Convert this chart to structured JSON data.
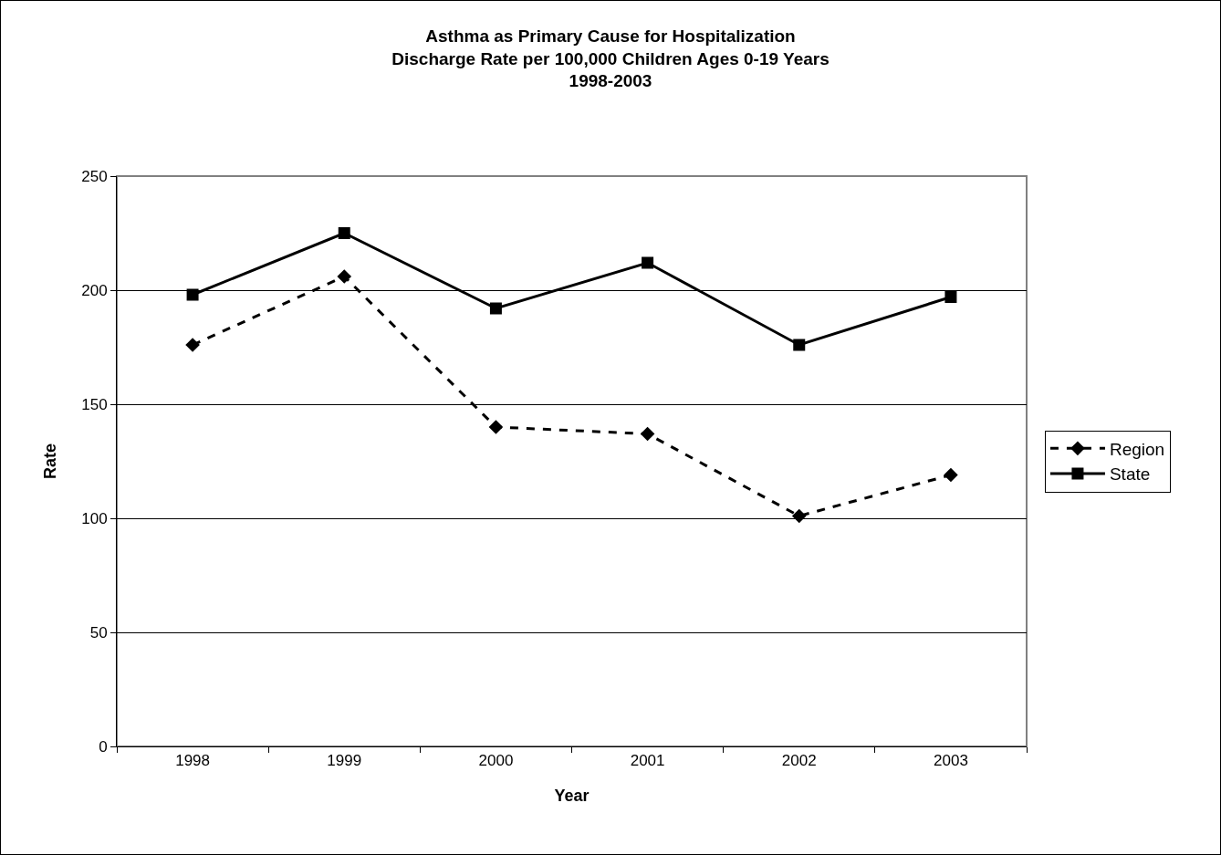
{
  "chart_data": {
    "type": "line",
    "title": "Asthma as Primary Cause for Hospitalization\nDischarge Rate per 100,000 Children Ages 0-19 Years\n1998-2003",
    "xlabel": "Year",
    "ylabel": "Rate",
    "categories": [
      "1998",
      "1999",
      "2000",
      "2001",
      "2002",
      "2003"
    ],
    "series": [
      {
        "name": "Region",
        "color": "#000000",
        "marker": "diamond",
        "line_style": "dashed",
        "values": [
          176,
          206,
          140,
          137,
          101,
          119
        ]
      },
      {
        "name": "State",
        "color": "#000000",
        "marker": "square",
        "line_style": "solid",
        "values": [
          198,
          225,
          192,
          212,
          176,
          197
        ]
      }
    ],
    "ylim": [
      0,
      250
    ],
    "yticks": [
      0,
      50,
      100,
      150,
      200,
      250
    ],
    "grid": "y",
    "legend": "right"
  }
}
